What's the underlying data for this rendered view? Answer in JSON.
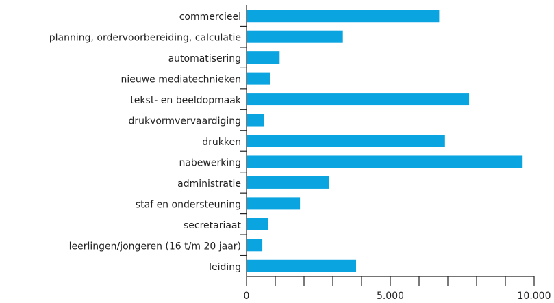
{
  "chart_data": {
    "type": "barh",
    "categories": [
      "commercieel",
      "planning, ordervoorbereiding, calculatie",
      "automatisering",
      "nieuwe mediatechnieken",
      "tekst- en beeldopmaak",
      "drukvormvervaardiging",
      "drukken",
      "nabewerking",
      "administratie",
      "staf en ondersteuning",
      "secretariaat",
      "leerlingen/jongeren (16 t/m 20 jaar)",
      "leiding"
    ],
    "values": [
      6700,
      3350,
      1150,
      830,
      7740,
      600,
      6900,
      9600,
      2860,
      1860,
      740,
      550,
      3810
    ],
    "color": "#0aa5e0",
    "xlim": [
      0,
      10000
    ],
    "xticks": [
      0,
      {
        "value": 5000,
        "label": "5.000"
      },
      {
        "value": 10000,
        "label": "10.000"
      }
    ],
    "xminor_ticks": [
      1000,
      2000,
      3000,
      4000,
      6000,
      7000,
      8000,
      9000
    ],
    "grid": false
  }
}
